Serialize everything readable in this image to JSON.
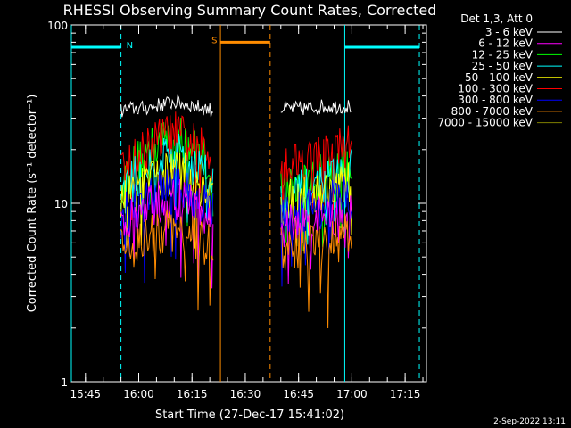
{
  "chart_data": {
    "type": "line",
    "title": "RHESSI Observing Summary Count Rates, Corrected",
    "xlabel": "Start Time (27-Dec-17 15:41:02)",
    "ylabel": "Corrected Count Rate (s⁻¹ detector⁻¹)",
    "yscale": "log",
    "ylim": [
      1,
      100
    ],
    "xlim": [
      "15:41:02",
      "17:21:00"
    ],
    "x_ticks": [
      "15:45",
      "16:00",
      "16:15",
      "16:30",
      "16:45",
      "17:00",
      "17:15"
    ],
    "y_ticks": [
      "1",
      "10",
      "100"
    ],
    "legend_title": "Det 1,3, Att 0",
    "legend_position": "top-right",
    "series": [
      {
        "name": "3 - 6 keV",
        "color": "#ffffff",
        "segments": [
          {
            "x": [
              "15:55",
              "15:58",
              "16:01",
              "16:04",
              "16:07",
              "16:10",
              "16:13",
              "16:16",
              "16:19",
              "16:21"
            ],
            "y": [
              33,
              34,
              34,
              35,
              36,
              37,
              36,
              35,
              34,
              33
            ]
          },
          {
            "x": [
              "16:40",
              "16:44",
              "16:48",
              "16:52",
              "16:56",
              "17:00"
            ],
            "y": [
              34,
              34,
              34,
              35,
              35,
              35
            ]
          }
        ]
      },
      {
        "name": "6 - 12 keV",
        "color": "#ff00ff",
        "segments": [
          {
            "x": [
              "15:55",
              "15:58",
              "16:01",
              "16:04",
              "16:07",
              "16:10",
              "16:13",
              "16:16",
              "16:19",
              "16:21"
            ],
            "y": [
              7.5,
              8,
              8.8,
              9.6,
              10.2,
              10.5,
              10,
              9.3,
              8.5,
              7.8
            ]
          },
          {
            "x": [
              "16:40",
              "16:44",
              "16:48",
              "16:52",
              "16:56",
              "17:00"
            ],
            "y": [
              7.2,
              7.5,
              7.8,
              8.2,
              8.6,
              9
            ]
          }
        ]
      },
      {
        "name": "12 - 25 keV",
        "color": "#00ff00",
        "segments": [
          {
            "x": [
              "15:55",
              "15:58",
              "16:01",
              "16:04",
              "16:07",
              "16:10",
              "16:13",
              "16:16",
              "16:19",
              "16:21"
            ],
            "y": [
              12.5,
              15.5,
              18,
              20.5,
              22.5,
              23.5,
              22,
              19.5,
              17,
              14.5
            ]
          },
          {
            "x": [
              "16:40",
              "16:44",
              "16:48",
              "16:52",
              "16:56",
              "17:00"
            ],
            "y": [
              12,
              12.4,
              13.2,
              14.5,
              16,
              17.5
            ]
          }
        ]
      },
      {
        "name": "25 - 50 keV",
        "color": "#00ffff",
        "segments": [
          {
            "x": [
              "15:55",
              "15:58",
              "16:01",
              "16:04",
              "16:07",
              "16:10",
              "16:13",
              "16:16",
              "16:19",
              "16:21"
            ],
            "y": [
              11,
              13,
              15,
              17,
              18.5,
              19,
              18,
              16.5,
              14.5,
              12.5
            ]
          },
          {
            "x": [
              "16:40",
              "16:44",
              "16:48",
              "16:52",
              "16:56",
              "17:00"
            ],
            "y": [
              10.5,
              11,
              11.8,
              12.8,
              14,
              15
            ]
          }
        ]
      },
      {
        "name": "50 - 100 keV",
        "color": "#ffff00",
        "segments": [
          {
            "x": [
              "15:55",
              "15:58",
              "16:01",
              "16:04",
              "16:07",
              "16:10",
              "16:13",
              "16:16",
              "16:19",
              "16:21"
            ],
            "y": [
              10.2,
              11.5,
              12.8,
              13.8,
              14.5,
              14.8,
              14.2,
              13.2,
              12,
              10.8
            ]
          },
          {
            "x": [
              "16:40",
              "16:44",
              "16:48",
              "16:52",
              "16:56",
              "17:00"
            ],
            "y": [
              9.8,
              10.2,
              10.8,
              11.5,
              12.2,
              13
            ]
          }
        ]
      },
      {
        "name": "100 - 300 keV",
        "color": "#ff0000",
        "segments": [
          {
            "x": [
              "15:55",
              "15:58",
              "16:01",
              "16:04",
              "16:07",
              "16:10",
              "16:13",
              "16:16",
              "16:19",
              "16:21"
            ],
            "y": [
              14,
              16.5,
              19,
              21.5,
              23.5,
              24.5,
              23,
              21,
              19,
              17
            ]
          },
          {
            "x": [
              "16:40",
              "16:44",
              "16:48",
              "16:52",
              "16:56",
              "17:00"
            ],
            "y": [
              17,
              17.2,
              17.6,
              18.5,
              19.8,
              21.5
            ]
          }
        ]
      },
      {
        "name": "300 - 800 keV",
        "color": "#0000ff",
        "segments": [
          {
            "x": [
              "15:55",
              "15:58",
              "16:01",
              "16:04",
              "16:07",
              "16:10",
              "16:13",
              "16:16",
              "16:19",
              "16:21"
            ],
            "y": [
              8.5,
              9.5,
              10.5,
              11.2,
              11.8,
              12,
              11.5,
              10.5,
              9.5,
              8.8
            ]
          },
          {
            "x": [
              "16:40",
              "16:44",
              "16:48",
              "16:52",
              "16:56",
              "17:00"
            ],
            "y": [
              8.5,
              8.8,
              9.2,
              9.8,
              10.3,
              10.8
            ]
          }
        ]
      },
      {
        "name": "800 - 7000 keV",
        "color": "#ff8c00",
        "segments": [
          {
            "x": [
              "15:55",
              "15:58",
              "16:01",
              "16:04",
              "16:07",
              "16:10",
              "16:13",
              "16:16",
              "16:19",
              "16:21"
            ],
            "y": [
              5.5,
              5.8,
              6.2,
              6.5,
              6.8,
              7,
              6.8,
              6.4,
              6,
              5.6
            ]
          },
          {
            "x": [
              "16:40",
              "16:44",
              "16:48",
              "16:52",
              "16:56",
              "17:00"
            ],
            "y": [
              5.4,
              5.5,
              5.7,
              6,
              6.3,
              6.6
            ]
          }
        ]
      },
      {
        "name": "7000 - 15000 keV",
        "color": "#808000",
        "segments": []
      }
    ],
    "annotations": [
      {
        "label": "N",
        "color": "#00ffff",
        "start": "15:41:02",
        "end": "15:55:00",
        "y": 75
      },
      {
        "label": "S",
        "color": "#ff8c00",
        "start": "16:23:00",
        "end": "16:37:00",
        "y": 80
      },
      {
        "label": "",
        "color": "#00ffff",
        "start": "16:58:00",
        "end": "17:19:00",
        "y": 75
      }
    ]
  },
  "footer": {
    "timestamp": "2-Sep-2022 13:11"
  }
}
